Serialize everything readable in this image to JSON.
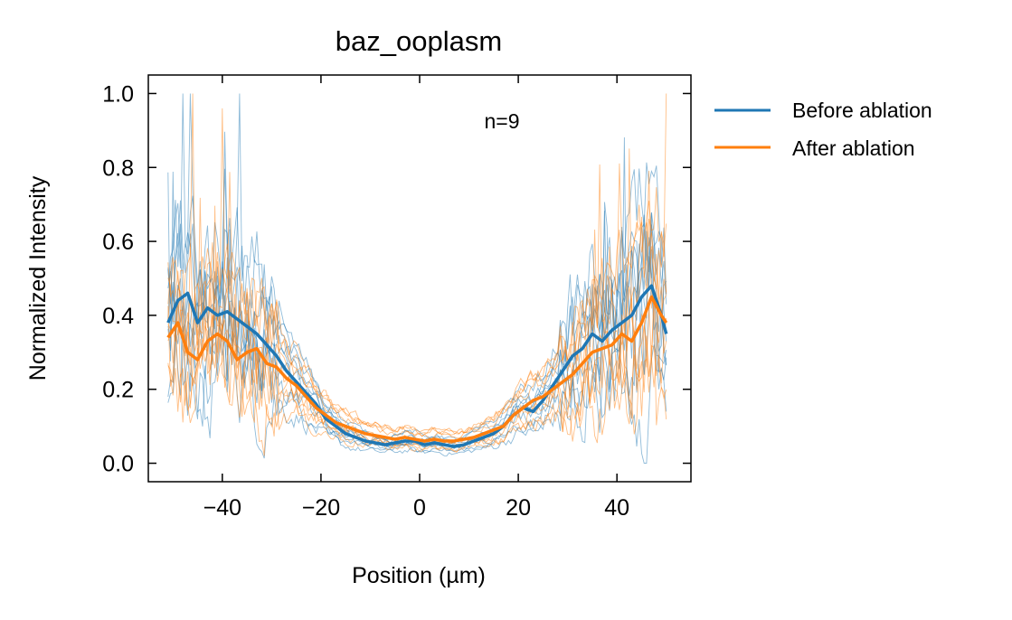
{
  "chart_data": {
    "type": "line",
    "title": "baz_ooplasm",
    "xlabel": "Position (µm)",
    "ylabel": "Normalized Intensity",
    "xlim": [
      -55,
      55
    ],
    "ylim": [
      -0.05,
      1.05
    ],
    "xticks": [
      -40,
      -20,
      0,
      20,
      40
    ],
    "xtick_labels": [
      "−40",
      "−20",
      "0",
      "20",
      "40"
    ],
    "yticks": [
      0.0,
      0.2,
      0.4,
      0.6,
      0.8,
      1.0
    ],
    "ytick_labels": [
      "0.0",
      "0.2",
      "0.4",
      "0.6",
      "0.8",
      "1.0"
    ],
    "annotation": "n=9",
    "legend_position": "outside-right",
    "series": [
      {
        "name": "Before ablation",
        "color": "#1f77b4",
        "x": [
          -51,
          -49,
          -47,
          -45,
          -43,
          -41,
          -39,
          -37,
          -35,
          -33,
          -31,
          -29,
          -27,
          -25,
          -23,
          -21,
          -19,
          -17,
          -15,
          -13,
          -11,
          -9,
          -7,
          -5,
          -3,
          -1,
          1,
          3,
          5,
          7,
          9,
          11,
          13,
          15,
          17,
          19,
          21,
          23,
          25,
          27,
          29,
          31,
          33,
          35,
          37,
          39,
          41,
          43,
          45,
          47,
          49,
          50
        ],
        "values": [
          0.38,
          0.44,
          0.46,
          0.38,
          0.42,
          0.4,
          0.41,
          0.39,
          0.37,
          0.35,
          0.32,
          0.29,
          0.25,
          0.22,
          0.19,
          0.16,
          0.12,
          0.1,
          0.08,
          0.07,
          0.06,
          0.055,
          0.05,
          0.055,
          0.06,
          0.06,
          0.05,
          0.055,
          0.05,
          0.045,
          0.05,
          0.06,
          0.07,
          0.08,
          0.1,
          0.13,
          0.15,
          0.14,
          0.17,
          0.21,
          0.25,
          0.29,
          0.31,
          0.35,
          0.33,
          0.36,
          0.38,
          0.4,
          0.45,
          0.48,
          0.4,
          0.35
        ]
      },
      {
        "name": "After ablation",
        "color": "#ff7f0e",
        "x": [
          -51,
          -49,
          -47,
          -45,
          -43,
          -41,
          -39,
          -37,
          -35,
          -33,
          -31,
          -29,
          -27,
          -25,
          -23,
          -21,
          -19,
          -17,
          -15,
          -13,
          -11,
          -9,
          -7,
          -5,
          -3,
          -1,
          1,
          3,
          5,
          7,
          9,
          11,
          13,
          15,
          17,
          19,
          21,
          23,
          25,
          27,
          29,
          31,
          33,
          35,
          37,
          39,
          41,
          43,
          45,
          47,
          49,
          50
        ],
        "values": [
          0.34,
          0.38,
          0.3,
          0.28,
          0.33,
          0.35,
          0.33,
          0.28,
          0.3,
          0.31,
          0.27,
          0.26,
          0.23,
          0.21,
          0.18,
          0.15,
          0.13,
          0.11,
          0.1,
          0.09,
          0.08,
          0.075,
          0.07,
          0.065,
          0.07,
          0.065,
          0.06,
          0.065,
          0.06,
          0.06,
          0.065,
          0.07,
          0.08,
          0.09,
          0.1,
          0.13,
          0.15,
          0.17,
          0.18,
          0.2,
          0.22,
          0.24,
          0.27,
          0.3,
          0.31,
          0.32,
          0.35,
          0.33,
          0.38,
          0.45,
          0.4,
          0.38
        ]
      }
    ]
  }
}
